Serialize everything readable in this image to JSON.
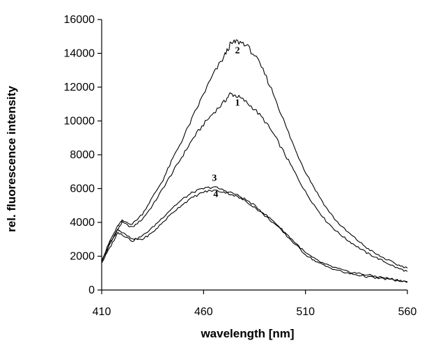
{
  "chart_data": {
    "type": "line",
    "xlabel": "wavelength [nm]",
    "ylabel": "rel. fluorescence intensity",
    "xlim": [
      410,
      560
    ],
    "ylim": [
      0,
      16000
    ],
    "x_ticks": [
      "410",
      "460",
      "510",
      "560"
    ],
    "y_ticks": [
      "0",
      "2000",
      "4000",
      "6000",
      "8000",
      "10000",
      "12000",
      "14000",
      "16000"
    ],
    "grid": false,
    "series": [
      {
        "name": "1",
        "x": [
          410,
          414,
          418,
          420,
          425,
          430,
          435,
          440,
          445,
          450,
          455,
          460,
          465,
          470,
          473,
          476,
          480,
          485,
          490,
          495,
          500,
          505,
          510,
          515,
          520,
          525,
          530,
          535,
          540,
          545,
          550,
          555,
          560
        ],
        "y": [
          1700,
          2700,
          3600,
          4000,
          3700,
          4200,
          5000,
          6000,
          7000,
          8000,
          9000,
          9800,
          10500,
          11100,
          11600,
          11500,
          11200,
          10700,
          10000,
          9100,
          8000,
          6900,
          5800,
          4900,
          4100,
          3500,
          3000,
          2600,
          2200,
          1900,
          1600,
          1300,
          1100
        ]
      },
      {
        "name": "2",
        "x": [
          410,
          414,
          418,
          420,
          425,
          430,
          435,
          440,
          445,
          450,
          455,
          460,
          465,
          470,
          473,
          476,
          480,
          485,
          490,
          495,
          500,
          505,
          510,
          515,
          520,
          525,
          530,
          535,
          540,
          545,
          550,
          555,
          560
        ],
        "y": [
          1700,
          2900,
          3800,
          4100,
          3900,
          4500,
          5500,
          6500,
          7800,
          9000,
          10300,
          11600,
          12800,
          13800,
          14500,
          14700,
          14600,
          13900,
          12800,
          11400,
          9800,
          8300,
          7000,
          5900,
          4900,
          4100,
          3500,
          3000,
          2500,
          2100,
          1800,
          1500,
          1300
        ]
      },
      {
        "name": "3",
        "x": [
          410,
          414,
          418,
          420,
          425,
          430,
          435,
          440,
          445,
          450,
          455,
          460,
          465,
          470,
          475,
          480,
          485,
          490,
          495,
          500,
          505,
          510,
          515,
          520,
          525,
          530,
          535,
          540,
          545,
          550,
          555,
          560
        ],
        "y": [
          1600,
          2500,
          3400,
          3300,
          2900,
          3200,
          3700,
          4300,
          4900,
          5400,
          5800,
          6000,
          6100,
          5900,
          5700,
          5400,
          5000,
          4500,
          4000,
          3400,
          2800,
          2200,
          1800,
          1500,
          1300,
          1100,
          1000,
          900,
          800,
          700,
          600,
          500
        ]
      },
      {
        "name": "4",
        "x": [
          410,
          414,
          418,
          420,
          425,
          430,
          435,
          440,
          445,
          450,
          455,
          460,
          465,
          470,
          475,
          480,
          485,
          490,
          495,
          500,
          505,
          510,
          515,
          520,
          525,
          530,
          535,
          540,
          545,
          550,
          555,
          560
        ],
        "y": [
          1700,
          2800,
          3600,
          3400,
          3000,
          3000,
          3400,
          4000,
          4600,
          5100,
          5500,
          5800,
          5900,
          5800,
          5600,
          5300,
          4900,
          4400,
          3900,
          3300,
          2700,
          2100,
          1700,
          1400,
          1200,
          1000,
          900,
          800,
          700,
          650,
          550,
          450
        ]
      }
    ]
  }
}
